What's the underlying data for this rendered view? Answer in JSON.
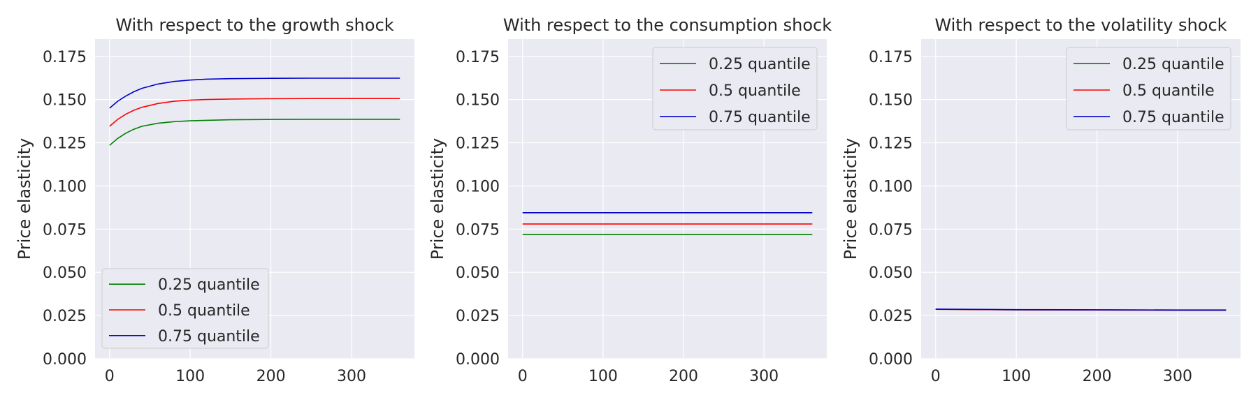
{
  "chart_data": [
    {
      "type": "line",
      "title": "With respect to the growth shock",
      "xlabel": "",
      "ylabel": "Price elasticity",
      "xlim": [
        -18,
        378
      ],
      "ylim": [
        0,
        0.185
      ],
      "xticks": [
        0,
        100,
        200,
        300
      ],
      "xtick_labels": [
        "0",
        "100",
        "200",
        "300"
      ],
      "yticks": [
        0,
        0.025,
        0.05,
        0.075,
        0.1,
        0.125,
        0.15,
        0.175
      ],
      "ytick_labels": [
        "0.000",
        "0.025",
        "0.050",
        "0.075",
        "0.100",
        "0.125",
        "0.150",
        "0.175"
      ],
      "grid": true,
      "legend_position": "lower-left",
      "series": [
        {
          "name": "0.25 quantile",
          "color": "#008000",
          "x": [
            0,
            10,
            20,
            30,
            40,
            60,
            80,
            100,
            120,
            150,
            200,
            250,
            300,
            360
          ],
          "y": [
            0.1235,
            0.1275,
            0.1305,
            0.1328,
            0.1345,
            0.1363,
            0.1372,
            0.1377,
            0.138,
            0.1383,
            0.1385,
            0.1386,
            0.1386,
            0.1386
          ]
        },
        {
          "name": "0.5 quantile",
          "color": "#ff0000",
          "x": [
            0,
            10,
            20,
            30,
            40,
            60,
            80,
            100,
            120,
            150,
            200,
            250,
            300,
            360
          ],
          "y": [
            0.1345,
            0.1385,
            0.1415,
            0.1438,
            0.1455,
            0.1477,
            0.149,
            0.1497,
            0.15,
            0.1503,
            0.1505,
            0.1506,
            0.1506,
            0.1506
          ]
        },
        {
          "name": "0.75 quantile",
          "color": "#0000cd",
          "x": [
            0,
            10,
            20,
            30,
            40,
            60,
            80,
            100,
            120,
            150,
            200,
            250,
            300,
            360
          ],
          "y": [
            0.145,
            0.149,
            0.152,
            0.1545,
            0.1565,
            0.159,
            0.1605,
            0.1613,
            0.1618,
            0.1621,
            0.1623,
            0.1624,
            0.1624,
            0.1624
          ]
        }
      ]
    },
    {
      "type": "line",
      "title": "With respect to the consumption shock",
      "xlabel": "",
      "ylabel": "Price elasticity",
      "xlim": [
        -18,
        378
      ],
      "ylim": [
        0,
        0.185
      ],
      "xticks": [
        0,
        100,
        200,
        300
      ],
      "xtick_labels": [
        "0",
        "100",
        "200",
        "300"
      ],
      "yticks": [
        0,
        0.025,
        0.05,
        0.075,
        0.1,
        0.125,
        0.15,
        0.175
      ],
      "ytick_labels": [
        "0.000",
        "0.025",
        "0.050",
        "0.075",
        "0.100",
        "0.125",
        "0.150",
        "0.175"
      ],
      "grid": true,
      "legend_position": "upper-right",
      "series": [
        {
          "name": "0.25 quantile",
          "color": "#008000",
          "x": [
            0,
            360
          ],
          "y": [
            0.072,
            0.072
          ]
        },
        {
          "name": "0.5 quantile",
          "color": "#ff0000",
          "x": [
            0,
            360
          ],
          "y": [
            0.078,
            0.078
          ]
        },
        {
          "name": "0.75 quantile",
          "color": "#0000cd",
          "x": [
            0,
            360
          ],
          "y": [
            0.0845,
            0.0845
          ]
        }
      ]
    },
    {
      "type": "line",
      "title": "With respect to the volatility shock",
      "xlabel": "",
      "ylabel": "Price elasticity",
      "xlim": [
        -18,
        378
      ],
      "ylim": [
        0,
        0.185
      ],
      "xticks": [
        0,
        100,
        200,
        300
      ],
      "xtick_labels": [
        "0",
        "100",
        "200",
        "300"
      ],
      "yticks": [
        0,
        0.025,
        0.05,
        0.075,
        0.1,
        0.125,
        0.15,
        0.175
      ],
      "ytick_labels": [
        "0.000",
        "0.025",
        "0.050",
        "0.075",
        "0.100",
        "0.125",
        "0.150",
        "0.175"
      ],
      "grid": true,
      "legend_position": "upper-right",
      "series": [
        {
          "name": "0.25 quantile",
          "color": "#008000",
          "x": [
            0,
            100,
            200,
            300,
            360
          ],
          "y": [
            0.0286,
            0.0283,
            0.0282,
            0.0281,
            0.0281
          ]
        },
        {
          "name": "0.5 quantile",
          "color": "#ff0000",
          "x": [
            0,
            100,
            200,
            300,
            360
          ],
          "y": [
            0.0286,
            0.0283,
            0.0282,
            0.0281,
            0.0281
          ]
        },
        {
          "name": "0.75 quantile",
          "color": "#0000cd",
          "x": [
            0,
            100,
            200,
            300,
            360
          ],
          "y": [
            0.0287,
            0.0284,
            0.0283,
            0.0282,
            0.0282
          ]
        }
      ]
    }
  ]
}
